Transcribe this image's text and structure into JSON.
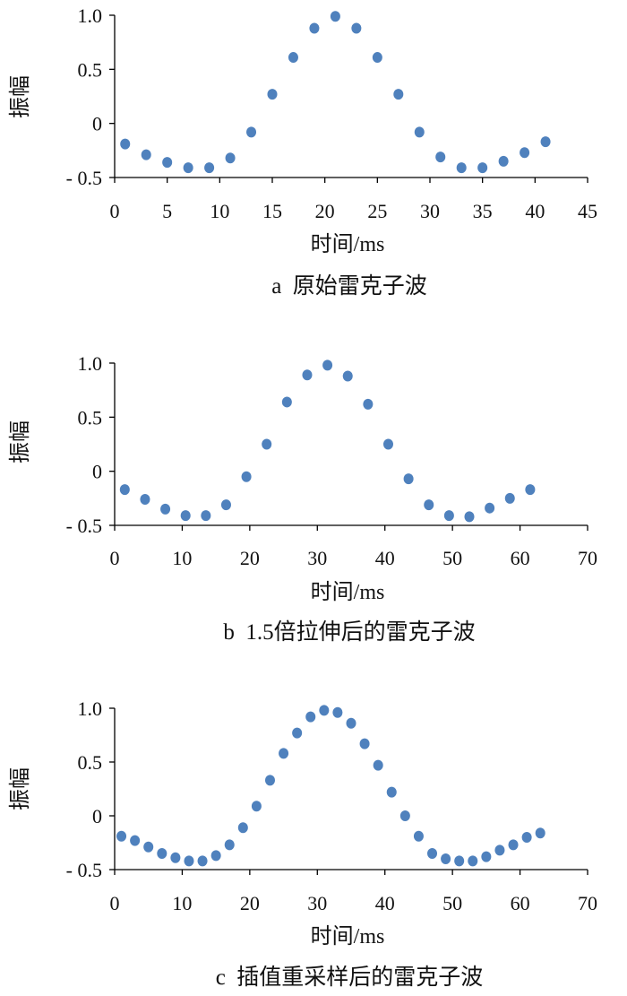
{
  "chart_data": [
    {
      "type": "scatter",
      "caption": "a  原始雷克子波",
      "xlabel": "时间/ms",
      "ylabel": "振幅",
      "xlim": [
        0,
        45
      ],
      "ylim": [
        -0.5,
        1.0
      ],
      "xticks": [
        0,
        5,
        10,
        15,
        20,
        25,
        30,
        35,
        40,
        45
      ],
      "yticks": [
        1.0,
        0.5,
        0,
        -0.5
      ],
      "ytick_labels": [
        "1.0",
        "0.5",
        "0",
        "- 0.5"
      ],
      "marker_color": "#4f81bd",
      "series": [
        {
          "x": [
            1,
            3,
            5,
            7,
            9,
            11,
            13,
            15,
            17,
            19,
            21,
            23,
            25,
            27,
            29,
            31,
            33,
            35,
            37,
            39,
            41
          ],
          "y": [
            -0.19,
            -0.29,
            -0.36,
            -0.41,
            -0.41,
            -0.32,
            -0.08,
            0.27,
            0.61,
            0.88,
            0.99,
            0.88,
            0.61,
            0.27,
            -0.08,
            -0.31,
            -0.41,
            -0.41,
            -0.35,
            -0.27,
            -0.17
          ]
        }
      ]
    },
    {
      "type": "scatter",
      "caption": "b  1.5倍拉伸后的雷克子波",
      "xlabel": "时间/ms",
      "ylabel": "振幅",
      "xlim": [
        0,
        70
      ],
      "ylim": [
        -0.5,
        1.0
      ],
      "xticks": [
        0,
        10,
        20,
        30,
        40,
        50,
        60,
        70
      ],
      "yticks": [
        1.0,
        0.5,
        0,
        -0.5
      ],
      "ytick_labels": [
        "1.0",
        "0.5",
        "0",
        "- 0.5"
      ],
      "marker_color": "#4f81bd",
      "series": [
        {
          "x": [
            1.5,
            4.5,
            7.5,
            10.5,
            13.5,
            16.5,
            19.5,
            22.5,
            25.5,
            28.5,
            31.5,
            34.5,
            37.5,
            40.5,
            43.5,
            46.5,
            49.5,
            52.5,
            55.5,
            58.5,
            61.5
          ],
          "y": [
            -0.17,
            -0.26,
            -0.35,
            -0.41,
            -0.41,
            -0.31,
            -0.05,
            0.25,
            0.64,
            0.89,
            0.98,
            0.88,
            0.62,
            0.25,
            -0.07,
            -0.31,
            -0.41,
            -0.42,
            -0.34,
            -0.25,
            -0.17
          ]
        }
      ]
    },
    {
      "type": "scatter",
      "caption": "c  插值重采样后的雷克子波",
      "xlabel": "时间/ms",
      "ylabel": "振幅",
      "xlim": [
        0,
        70
      ],
      "ylim": [
        -0.5,
        1.0
      ],
      "xticks": [
        0,
        10,
        20,
        30,
        40,
        50,
        60,
        70
      ],
      "yticks": [
        1.0,
        0.5,
        0,
        -0.5
      ],
      "ytick_labels": [
        "1.0",
        "0.5",
        "0",
        "- 0.5"
      ],
      "marker_color": "#4f81bd",
      "series": [
        {
          "x": [
            1,
            3,
            5,
            7,
            9,
            11,
            13,
            15,
            17,
            19,
            21,
            23,
            25,
            27,
            29,
            31,
            33,
            35,
            37,
            39,
            41,
            43,
            45,
            47,
            49,
            51,
            53,
            55,
            57,
            59,
            61,
            63
          ],
          "y": [
            -0.19,
            -0.23,
            -0.29,
            -0.35,
            -0.39,
            -0.42,
            -0.42,
            -0.37,
            -0.27,
            -0.11,
            0.09,
            0.33,
            0.58,
            0.77,
            0.92,
            0.98,
            0.96,
            0.86,
            0.67,
            0.47,
            0.22,
            0.0,
            -0.19,
            -0.35,
            -0.4,
            -0.42,
            -0.42,
            -0.38,
            -0.32,
            -0.27,
            -0.2,
            -0.16
          ]
        }
      ]
    }
  ]
}
